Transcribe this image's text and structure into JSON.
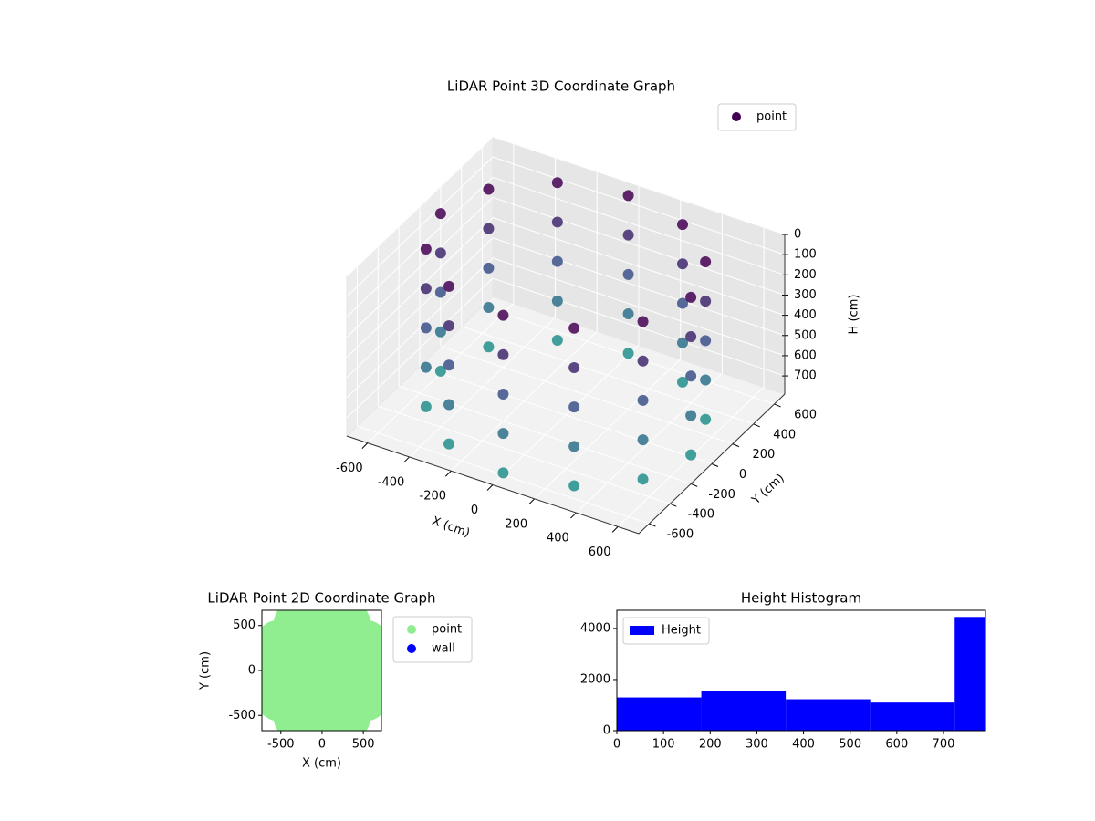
{
  "chart_data": [
    {
      "type": "scatter3d",
      "title": "LiDAR Point 3D Coordinate Graph",
      "xlabel": "X (cm)",
      "ylabel": "Y (cm)",
      "zlabel": "H (cm)",
      "xlim": [
        -700,
        700
      ],
      "ylim": [
        -700,
        700
      ],
      "zlim": [
        0,
        790
      ],
      "zinvert": true,
      "xticks": [
        -600,
        -400,
        -200,
        0,
        200,
        400,
        600
      ],
      "yticks": [
        -600,
        -400,
        -200,
        0,
        200,
        400,
        600
      ],
      "zticks": [
        0,
        100,
        200,
        300,
        400,
        500,
        600,
        700
      ],
      "colormap": [
        "#440154",
        "#3b528b",
        "#21918c"
      ],
      "legend_loc": "upper right",
      "series": [
        {
          "name": "point",
          "x": [
            600,
            520,
            300,
            0,
            -300,
            -520,
            -600,
            -520,
            -300,
            0,
            300,
            520,
            600,
            520,
            300,
            0,
            -300,
            -520,
            -600,
            -520,
            -300,
            0,
            300,
            520,
            600,
            520,
            300,
            0,
            -300,
            -520,
            -600,
            -520,
            -300,
            0,
            300,
            520,
            600,
            520,
            300,
            0,
            -300,
            -520,
            -600,
            -520,
            -300,
            0,
            300,
            520,
            600,
            520,
            300,
            0,
            -300,
            -520,
            -600,
            -520,
            -300,
            0,
            300,
            520
          ],
          "y": [
            0,
            300,
            520,
            600,
            520,
            300,
            0,
            -300,
            -520,
            -600,
            -520,
            -300,
            0,
            300,
            520,
            600,
            520,
            300,
            0,
            -300,
            -520,
            -600,
            -520,
            -300,
            0,
            300,
            520,
            600,
            520,
            300,
            0,
            -300,
            -520,
            -600,
            -520,
            -300,
            0,
            300,
            520,
            600,
            520,
            300,
            0,
            -300,
            -520,
            -600,
            -520,
            -300,
            0,
            300,
            520,
            600,
            520,
            300,
            0,
            -300,
            -520,
            -600,
            -520,
            -300
          ],
          "z": [
            0,
            0,
            0,
            0,
            0,
            0,
            0,
            0,
            0,
            0,
            0,
            0,
            195,
            195,
            195,
            195,
            195,
            195,
            195,
            195,
            195,
            195,
            195,
            195,
            390,
            390,
            390,
            390,
            390,
            390,
            390,
            390,
            390,
            390,
            390,
            390,
            585,
            585,
            585,
            585,
            585,
            585,
            585,
            585,
            585,
            585,
            585,
            585,
            780,
            780,
            780,
            780,
            780,
            780,
            780,
            780,
            780,
            780,
            780,
            780
          ]
        }
      ]
    },
    {
      "type": "scatter",
      "title": "LiDAR Point 2D Coordinate Graph",
      "xlabel": "X (cm)",
      "ylabel": "Y (cm)",
      "xlim": [
        -730,
        720
      ],
      "ylim": [
        -670,
        670
      ],
      "xticks": [
        -500,
        0,
        500
      ],
      "yticks": [
        -500,
        0,
        500
      ],
      "legend_loc": "outside right",
      "series": [
        {
          "name": "point",
          "color": "#90ee90",
          "x": [
            600,
            520,
            300,
            0,
            -300,
            -520,
            -600,
            -520,
            -300,
            0,
            300,
            520,
            300,
            150,
            -150,
            -300,
            -150,
            150,
            0
          ],
          "y": [
            0,
            300,
            520,
            600,
            520,
            300,
            0,
            -300,
            -520,
            -600,
            -520,
            -300,
            0,
            260,
            260,
            0,
            -260,
            -260,
            0
          ]
        },
        {
          "name": "wall",
          "color": "#0000ff",
          "x": [],
          "y": []
        }
      ]
    },
    {
      "type": "histogram",
      "title": "Height Histogram",
      "name": "Height",
      "color": "#0000ff",
      "bins": [
        0,
        181,
        362,
        543,
        724,
        790
      ],
      "counts": [
        1300,
        1550,
        1230,
        1100,
        4450
      ],
      "xlim": [
        0,
        790
      ],
      "ylim": [
        0,
        4710
      ],
      "xticks": [
        0,
        100,
        200,
        300,
        400,
        500,
        600,
        700
      ],
      "yticks": [
        0,
        2000,
        4000
      ],
      "legend_loc": "upper left"
    }
  ]
}
